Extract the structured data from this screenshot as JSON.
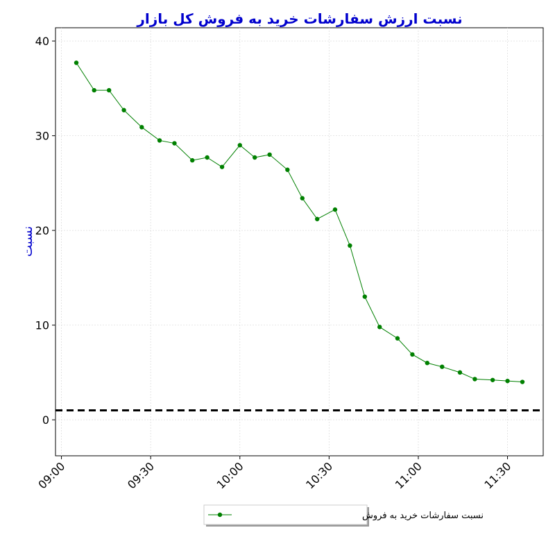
{
  "chart_data": {
    "type": "line",
    "title": "نسبت ارزش سفارشات خرید به فروش کل بازار",
    "y_label": "نسبت",
    "x": [
      "09:05",
      "09:11",
      "09:16",
      "09:21",
      "09:27",
      "09:33",
      "09:38",
      "09:44",
      "09:49",
      "09:54",
      "10:00",
      "10:05",
      "10:10",
      "10:16",
      "10:21",
      "10:26",
      "10:32",
      "10:37",
      "10:42",
      "10:47",
      "10:53",
      "10:58",
      "11:03",
      "11:08",
      "11:14",
      "11:19",
      "11:25",
      "11:30",
      "11:35"
    ],
    "series": [
      {
        "name": "نسبت سفارشات خرید به فروش",
        "color": "#008000",
        "values": [
          37.7,
          34.8,
          34.8,
          32.7,
          30.9,
          29.5,
          29.2,
          27.4,
          27.7,
          26.7,
          29.0,
          27.7,
          28.0,
          26.4,
          23.4,
          21.2,
          22.2,
          18.4,
          13.0,
          9.8,
          8.6,
          6.9,
          6.0,
          5.6,
          5.0,
          4.3,
          4.2,
          4.1,
          4.0
        ]
      }
    ],
    "hline": 1,
    "xlim": [
      "08:58",
      "11:42"
    ],
    "xticks": [
      "09:00",
      "09:30",
      "10:00",
      "10:30",
      "11:00",
      "11:30"
    ],
    "ylim": [
      -3.8,
      41.4
    ],
    "yticks": [
      0,
      10,
      20,
      30,
      40
    ],
    "grid": true,
    "legend": "bottom"
  }
}
